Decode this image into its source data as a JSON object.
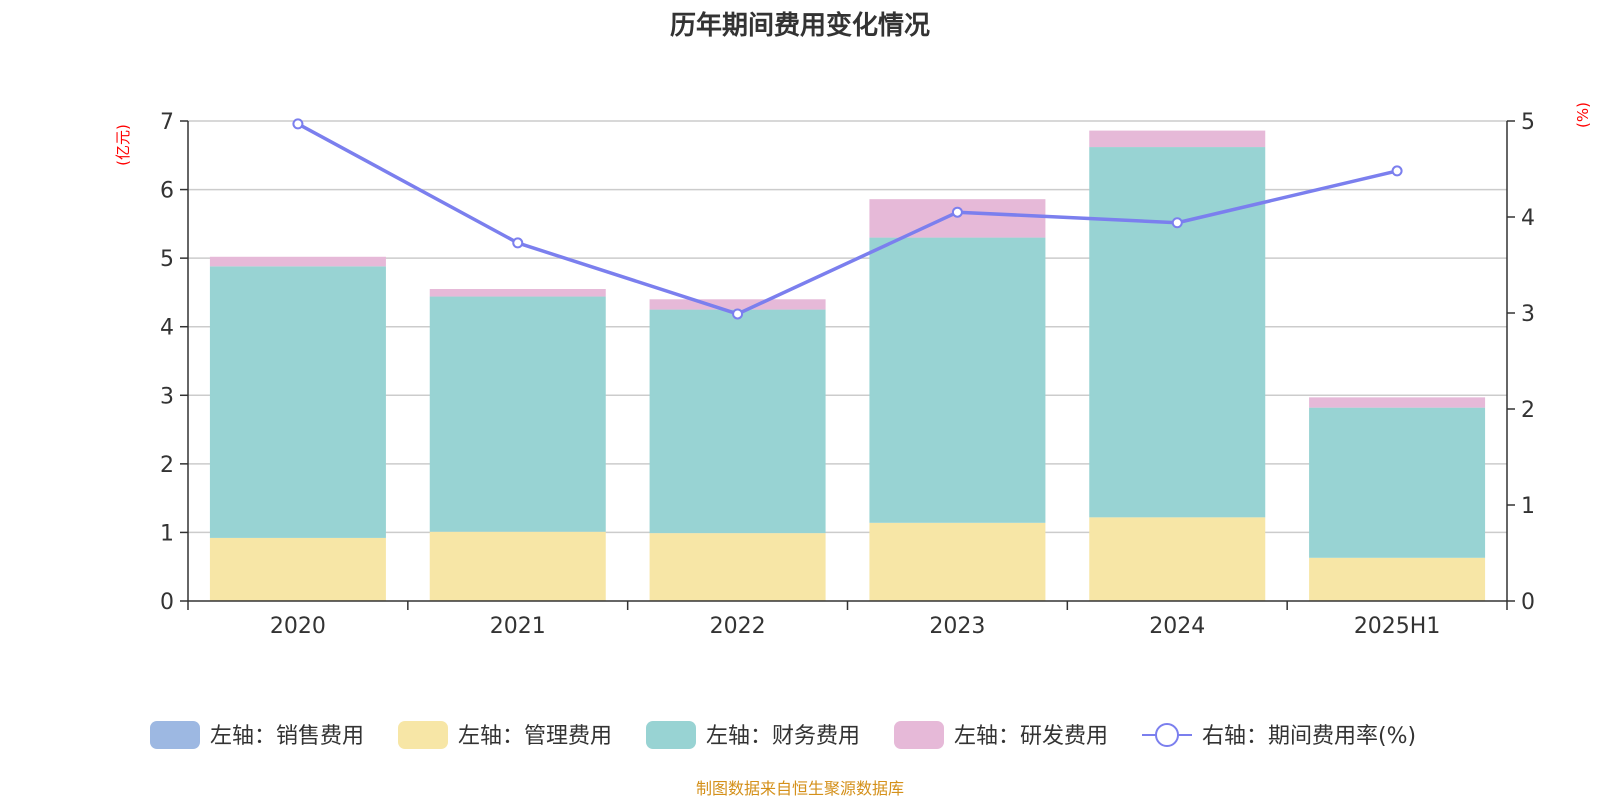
{
  "chart_data": {
    "type": "bar",
    "title": "历年期间费用变化情况",
    "left_unit": "(亿元)",
    "right_unit": "(%)",
    "categories": [
      "2020",
      "2021",
      "2022",
      "2023",
      "2024",
      "2025H1"
    ],
    "ylim_left": [
      0,
      7
    ],
    "yticks_left": [
      0,
      1,
      2,
      3,
      4,
      5,
      6,
      7
    ],
    "ylim_right": [
      0,
      5
    ],
    "yticks_right": [
      0,
      1,
      2,
      3,
      4,
      5
    ],
    "grid": true,
    "legend_position": "bottom",
    "series": [
      {
        "name": "左轴：销售费用",
        "type": "bar",
        "axis": "left",
        "color": "#9db8e2",
        "values": [
          0,
          0,
          0,
          0,
          0,
          0
        ]
      },
      {
        "name": "左轴：管理费用",
        "type": "bar",
        "axis": "left",
        "color": "#f7e6a6",
        "values": [
          0.92,
          1.01,
          0.99,
          1.14,
          1.22,
          0.63
        ]
      },
      {
        "name": "左轴：财务费用",
        "type": "bar",
        "axis": "left",
        "color": "#98d3d3",
        "values": [
          3.96,
          3.43,
          3.26,
          4.16,
          5.4,
          2.19
        ]
      },
      {
        "name": "左轴：研发费用",
        "type": "bar",
        "axis": "left",
        "color": "#e6b9d8",
        "values": [
          0.14,
          0.11,
          0.15,
          0.56,
          0.24,
          0.15
        ]
      },
      {
        "name": "右轴：期间费用率(%)",
        "type": "line",
        "axis": "right",
        "color": "#7b7fee",
        "values": [
          4.97,
          3.73,
          2.99,
          4.05,
          3.94,
          4.48
        ]
      }
    ]
  },
  "footer": {
    "source": "制图数据来自恒生聚源数据库"
  }
}
